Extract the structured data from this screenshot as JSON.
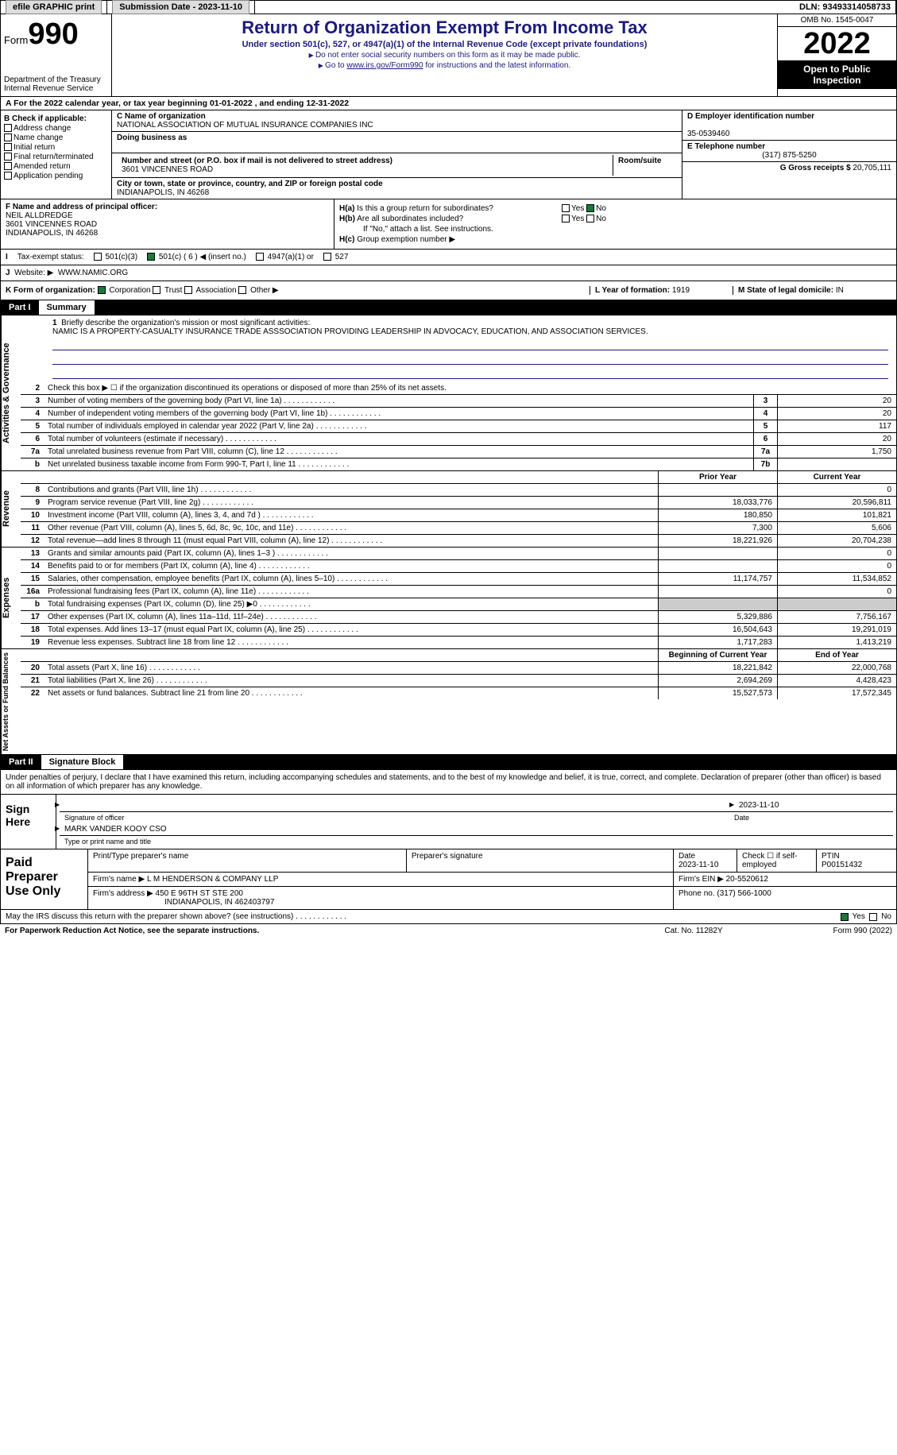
{
  "topbar": {
    "efile_label": "efile GRAPHIC print",
    "submission_label": "Submission Date - 2023-11-10",
    "dln_label": "DLN: 93493314058733"
  },
  "header": {
    "form_label": "Form",
    "form_number": "990",
    "dept": "Department of the Treasury",
    "irs": "Internal Revenue Service",
    "title": "Return of Organization Exempt From Income Tax",
    "subtitle": "Under section 501(c), 527, or 4947(a)(1) of the Internal Revenue Code (except private foundations)",
    "note1": "Do not enter social security numbers on this form as it may be made public.",
    "note2_pre": "Go to ",
    "note2_link": "www.irs.gov/Form990",
    "note2_post": " for instructions and the latest information.",
    "omb": "OMB No. 1545-0047",
    "year": "2022",
    "inspect": "Open to Public Inspection"
  },
  "row_a": "For the 2022 calendar year, or tax year beginning 01-01-2022   , and ending 12-31-2022",
  "section_b": {
    "heading": "B Check if applicable:",
    "opts": [
      "Address change",
      "Name change",
      "Initial return",
      "Final return/terminated",
      "Amended return",
      "Application pending"
    ]
  },
  "section_c": {
    "name_lbl": "C Name of organization",
    "name": "NATIONAL ASSOCIATION OF MUTUAL INSURANCE COMPANIES INC",
    "dba_lbl": "Doing business as",
    "dba": "",
    "addr_lbl": "Number and street (or P.O. box if mail is not delivered to street address)",
    "room_lbl": "Room/suite",
    "addr": "3601 VINCENNES ROAD",
    "city_lbl": "City or town, state or province, country, and ZIP or foreign postal code",
    "city": "INDIANAPOLIS, IN  46268"
  },
  "section_d": {
    "ein_lbl": "D Employer identification number",
    "ein": "35-0539460",
    "tel_lbl": "E Telephone number",
    "tel": "(317) 875-5250",
    "gross_lbl": "G Gross receipts $",
    "gross": "20,705,111"
  },
  "section_f": {
    "lbl": "F Name and address of principal officer:",
    "name": "NEIL ALLDREDGE",
    "addr1": "3601 VINCENNES ROAD",
    "addr2": "INDIANAPOLIS, IN  46268"
  },
  "section_h": {
    "ha": "Is this a group return for subordinates?",
    "hb": "Are all subordinates included?",
    "hb_note": "If \"No,\" attach a list. See instructions.",
    "hc": "Group exemption number ▶",
    "yes": "Yes",
    "no": "No"
  },
  "row_i": {
    "lbl": "Tax-exempt status:",
    "opt1": "501(c)(3)",
    "opt2": "501(c) ( 6 ) ◀ (insert no.)",
    "opt3": "4947(a)(1) or",
    "opt4": "527"
  },
  "row_j": {
    "lbl": "Website: ▶",
    "val": "WWW.NAMIC.ORG"
  },
  "row_k": {
    "lbl": "K Form of organization:",
    "opts": [
      "Corporation",
      "Trust",
      "Association",
      "Other ▶"
    ],
    "l_lbl": "L Year of formation:",
    "l_val": "1919",
    "m_lbl": "M State of legal domicile:",
    "m_val": "IN"
  },
  "part1": {
    "num": "Part I",
    "title": "Summary"
  },
  "mission": {
    "lbl": "Briefly describe the organization's mission or most significant activities:",
    "text": "NAMIC IS A PROPERTY-CASUALTY INSURANCE TRADE ASSSOCIATION PROVIDING LEADERSHIP IN ADVOCACY, EDUCATION, AND ASSOCIATION SERVICES."
  },
  "summary_rows": {
    "r2": "Check this box ▶ ☐ if the organization discontinued its operations or disposed of more than 25% of its net assets.",
    "r3": {
      "d": "Number of voting members of the governing body (Part VI, line 1a)",
      "v": "20"
    },
    "r4": {
      "d": "Number of independent voting members of the governing body (Part VI, line 1b)",
      "v": "20"
    },
    "r5": {
      "d": "Total number of individuals employed in calendar year 2022 (Part V, line 2a)",
      "v": "117"
    },
    "r6": {
      "d": "Total number of volunteers (estimate if necessary)",
      "v": "20"
    },
    "r7a": {
      "d": "Total unrelated business revenue from Part VIII, column (C), line 12",
      "v": "1,750"
    },
    "r7b": {
      "d": "Net unrelated business taxable income from Form 990-T, Part I, line 11",
      "v": ""
    }
  },
  "two_col_hdr": {
    "prior": "Prior Year",
    "current": "Current Year"
  },
  "revenue": [
    {
      "n": "8",
      "d": "Contributions and grants (Part VIII, line 1h)",
      "p": "",
      "c": "0"
    },
    {
      "n": "9",
      "d": "Program service revenue (Part VIII, line 2g)",
      "p": "18,033,776",
      "c": "20,596,811"
    },
    {
      "n": "10",
      "d": "Investment income (Part VIII, column (A), lines 3, 4, and 7d )",
      "p": "180,850",
      "c": "101,821"
    },
    {
      "n": "11",
      "d": "Other revenue (Part VIII, column (A), lines 5, 6d, 8c, 9c, 10c, and 11e)",
      "p": "7,300",
      "c": "5,606"
    },
    {
      "n": "12",
      "d": "Total revenue—add lines 8 through 11 (must equal Part VIII, column (A), line 12)",
      "p": "18,221,926",
      "c": "20,704,238"
    }
  ],
  "expenses": [
    {
      "n": "13",
      "d": "Grants and similar amounts paid (Part IX, column (A), lines 1–3 )",
      "p": "",
      "c": "0"
    },
    {
      "n": "14",
      "d": "Benefits paid to or for members (Part IX, column (A), line 4)",
      "p": "",
      "c": "0"
    },
    {
      "n": "15",
      "d": "Salaries, other compensation, employee benefits (Part IX, column (A), lines 5–10)",
      "p": "11,174,757",
      "c": "11,534,852"
    },
    {
      "n": "16a",
      "d": "Professional fundraising fees (Part IX, column (A), line 11e)",
      "p": "",
      "c": "0"
    },
    {
      "n": "b",
      "d": "Total fundraising expenses (Part IX, column (D), line 25) ▶0",
      "p": "SHADE",
      "c": "SHADE"
    },
    {
      "n": "17",
      "d": "Other expenses (Part IX, column (A), lines 11a–11d, 11f–24e)",
      "p": "5,329,886",
      "c": "7,756,167"
    },
    {
      "n": "18",
      "d": "Total expenses. Add lines 13–17 (must equal Part IX, column (A), line 25)",
      "p": "16,504,643",
      "c": "19,291,019"
    },
    {
      "n": "19",
      "d": "Revenue less expenses. Subtract line 18 from line 12",
      "p": "1,717,283",
      "c": "1,413,219"
    }
  ],
  "net_hdr": {
    "begin": "Beginning of Current Year",
    "end": "End of Year"
  },
  "netassets": [
    {
      "n": "20",
      "d": "Total assets (Part X, line 16)",
      "p": "18,221,842",
      "c": "22,000,768"
    },
    {
      "n": "21",
      "d": "Total liabilities (Part X, line 26)",
      "p": "2,694,269",
      "c": "4,428,423"
    },
    {
      "n": "22",
      "d": "Net assets or fund balances. Subtract line 21 from line 20",
      "p": "15,527,573",
      "c": "17,572,345"
    }
  ],
  "side_labels": {
    "ag": "Activities & Governance",
    "rev": "Revenue",
    "exp": "Expenses",
    "net": "Net Assets or Fund Balances"
  },
  "part2": {
    "num": "Part II",
    "title": "Signature Block"
  },
  "sig_jurat": "Under penalties of perjury, I declare that I have examined this return, including accompanying schedules and statements, and to the best of my knowledge and belief, it is true, correct, and complete. Declaration of preparer (other than officer) is based on all information of which preparer has any knowledge.",
  "sign": {
    "here": "Sign Here",
    "sig_lbl": "Signature of officer",
    "date": "2023-11-10",
    "date_lbl": "Date",
    "name": "MARK VANDER KOOY CSO",
    "name_lbl": "Type or print name and title"
  },
  "prep": {
    "label": "Paid Preparer Use Only",
    "col1": "Print/Type preparer's name",
    "col2": "Preparer's signature",
    "col3_lbl": "Date",
    "col3": "2023-11-10",
    "col4": "Check ☐ if self-employed",
    "col5_lbl": "PTIN",
    "col5": "P00151432",
    "firm_lbl": "Firm's name    ▶",
    "firm": "L M HENDERSON & COMPANY LLP",
    "ein_lbl": "Firm's EIN ▶",
    "ein": "20-5520612",
    "addr_lbl": "Firm's address ▶",
    "addr1": "450 E 96TH ST STE 200",
    "addr2": "INDIANAPOLIS, IN  462403797",
    "phone_lbl": "Phone no.",
    "phone": "(317) 566-1000"
  },
  "footer": {
    "q": "May the IRS discuss this return with the preparer shown above? (see instructions)",
    "yes": "Yes",
    "no": "No",
    "pra": "For Paperwork Reduction Act Notice, see the separate instructions.",
    "cat": "Cat. No. 11282Y",
    "form": "Form 990 (2022)"
  }
}
